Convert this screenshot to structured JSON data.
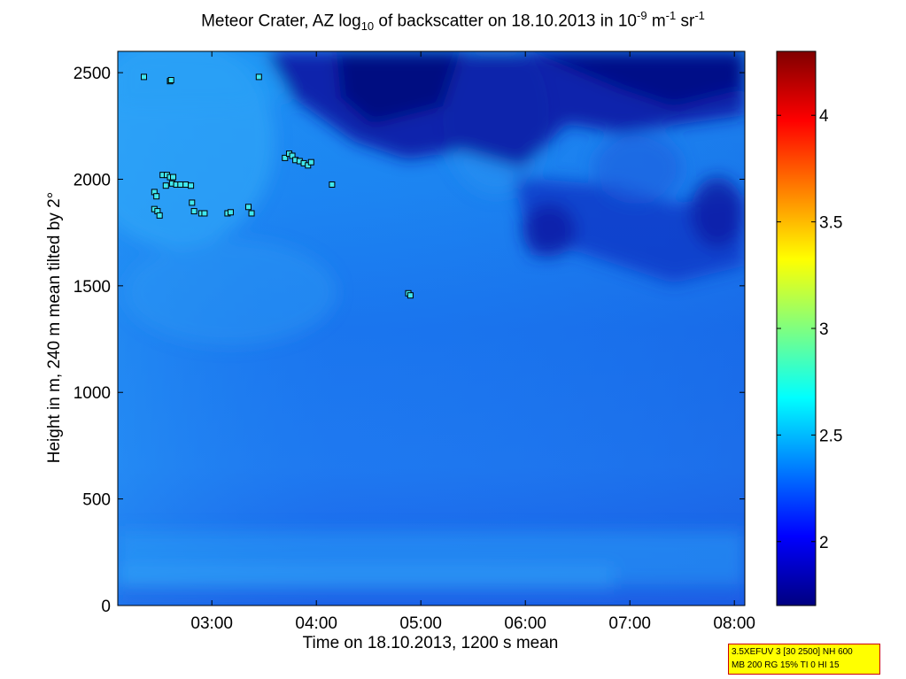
{
  "chart_data": {
    "type": "heatmap",
    "title_parts": {
      "pre": "Meteor Crater, AZ log",
      "sub1": "10",
      "mid": " of backscatter on 18.10.2013 in 10",
      "sup1": "-9",
      "unit_m": " m",
      "sup2": "-1",
      "unit_sr": " sr",
      "sup3": "-1"
    },
    "xlabel": "Time on 18.10.2013, 1200 s mean",
    "ylabel": "Height in m, 240 m mean tilted by 2°",
    "x_range_hours": [
      2.1,
      8.1
    ],
    "ylim": [
      0,
      2600
    ],
    "x_ticks": [
      {
        "label": "03:00",
        "hour": 3
      },
      {
        "label": "04:00",
        "hour": 4
      },
      {
        "label": "05:00",
        "hour": 5
      },
      {
        "label": "06:00",
        "hour": 6
      },
      {
        "label": "07:00",
        "hour": 7
      },
      {
        "label": "08:00",
        "hour": 8
      }
    ],
    "y_ticks": [
      0,
      500,
      1000,
      1500,
      2000,
      2500
    ],
    "colorbar": {
      "range": [
        1.7,
        4.3
      ],
      "ticks": [
        "2",
        "2.5",
        "3",
        "3.5",
        "4"
      ],
      "colormap": "jet"
    },
    "cloud_base_points": [
      {
        "hour": 2.35,
        "h": 2480
      },
      {
        "hour": 2.6,
        "h": 2460
      },
      {
        "hour": 2.61,
        "h": 2465
      },
      {
        "hour": 3.45,
        "h": 2480
      },
      {
        "hour": 2.45,
        "h": 1940
      },
      {
        "hour": 2.47,
        "h": 1920
      },
      {
        "hour": 2.45,
        "h": 1860
      },
      {
        "hour": 2.48,
        "h": 1850
      },
      {
        "hour": 2.5,
        "h": 1830
      },
      {
        "hour": 2.53,
        "h": 2020
      },
      {
        "hour": 2.57,
        "h": 2020
      },
      {
        "hour": 2.6,
        "h": 2010
      },
      {
        "hour": 2.63,
        "h": 2010
      },
      {
        "hour": 2.56,
        "h": 1970
      },
      {
        "hour": 2.62,
        "h": 1980
      },
      {
        "hour": 2.66,
        "h": 1975
      },
      {
        "hour": 2.7,
        "h": 1975
      },
      {
        "hour": 2.75,
        "h": 1975
      },
      {
        "hour": 2.8,
        "h": 1970
      },
      {
        "hour": 2.81,
        "h": 1890
      },
      {
        "hour": 2.83,
        "h": 1850
      },
      {
        "hour": 2.9,
        "h": 1840
      },
      {
        "hour": 2.93,
        "h": 1840
      },
      {
        "hour": 3.15,
        "h": 1840
      },
      {
        "hour": 3.18,
        "h": 1845
      },
      {
        "hour": 3.35,
        "h": 1870
      },
      {
        "hour": 3.38,
        "h": 1840
      },
      {
        "hour": 3.7,
        "h": 2100
      },
      {
        "hour": 3.74,
        "h": 2120
      },
      {
        "hour": 3.77,
        "h": 2110
      },
      {
        "hour": 3.8,
        "h": 2090
      },
      {
        "hour": 3.84,
        "h": 2085
      },
      {
        "hour": 3.88,
        "h": 2075
      },
      {
        "hour": 3.92,
        "h": 2065
      },
      {
        "hour": 3.95,
        "h": 2080
      },
      {
        "hour": 4.15,
        "h": 1975
      },
      {
        "hour": 4.88,
        "h": 1465
      },
      {
        "hour": 4.9,
        "h": 1455
      }
    ]
  },
  "infobox": {
    "line1": "3.5XEFUV 3 [30 2500] NH 600",
    "line2": "MB 200 RG 15% TI 0 HI 15"
  }
}
